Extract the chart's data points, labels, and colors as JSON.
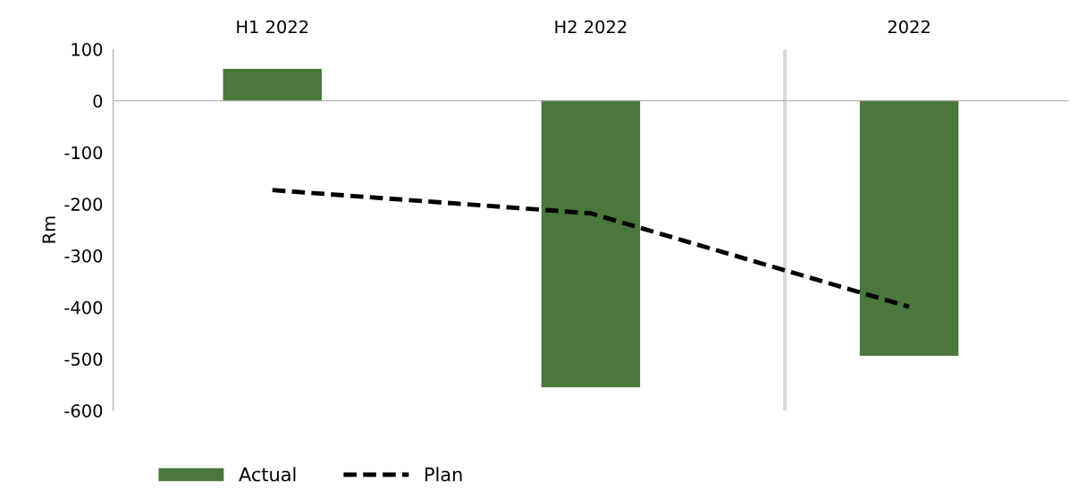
{
  "chart_data": {
    "type": "bar",
    "ylabel": "Rm",
    "categories": [
      "H1 2022",
      "H2 2022",
      "2022"
    ],
    "series": [
      {
        "name": "Actual",
        "color": "#4a773c",
        "values": [
          62,
          -555,
          -494
        ]
      },
      {
        "name": "Plan",
        "type": "line",
        "color": "#000000",
        "line_style": "dashed",
        "marker": "none",
        "values": [
          -173,
          -218,
          -399
        ]
      }
    ],
    "ylim": [
      -600,
      100
    ],
    "yticks": [
      100,
      0,
      -100,
      -200,
      -300,
      -400,
      -500,
      -600
    ],
    "legend": "bottom left"
  }
}
